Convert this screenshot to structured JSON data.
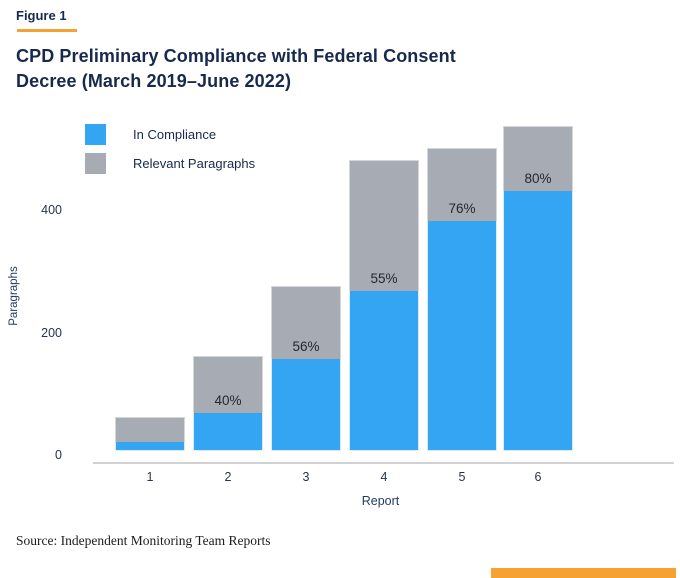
{
  "figure_label": "Figure 1",
  "title_lines": [
    "CPD Preliminary Compliance with Federal Consent",
    "Decree (March 2019–June 2022)"
  ],
  "source": "Source: Independent Monitoring Team Reports",
  "colors": {
    "navy_text": "#17294d",
    "gold_accent": "#f5a230",
    "blue_bar": "#34a5f2",
    "gray_bar": "#a7abb3",
    "axis_line": "#d2d2d2"
  },
  "legend": [
    {
      "label": "In Compliance",
      "color": "#34a5f2"
    },
    {
      "label": "Relevant Paragraphs",
      "color": "#a7abb3"
    }
  ],
  "chart_data": {
    "type": "bar",
    "title": "CPD Preliminary Compliance with Federal Consent Decree (March 2019–June 2022)",
    "categories": [
      "1",
      "2",
      "3",
      "4",
      "5",
      "6"
    ],
    "xlabel": "Report",
    "ylabel": "Paragraphs",
    "yticks": [
      0,
      200,
      400
    ],
    "ylim": [
      0,
      560
    ],
    "grid": false,
    "legend_position": "top-left",
    "series": [
      {
        "name": "Relevant Paragraphs",
        "color": "#a7abb3",
        "values": [
          55,
          155,
          270,
          475,
          495,
          530
        ]
      },
      {
        "name": "In Compliance",
        "color": "#34a5f2",
        "values": [
          15,
          62,
          151,
          261,
          376,
          424
        ]
      }
    ],
    "bar_labels": [
      "",
      "40%",
      "56%",
      "55%",
      "76%",
      "80%"
    ]
  }
}
